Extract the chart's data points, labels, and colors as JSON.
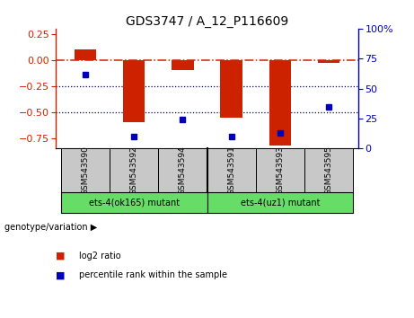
{
  "title": "GDS3747 / A_12_P116609",
  "samples": [
    "GSM543590",
    "GSM543592",
    "GSM543594",
    "GSM543591",
    "GSM543593",
    "GSM543595"
  ],
  "log2_ratio": [
    0.1,
    -0.6,
    -0.1,
    -0.55,
    -0.82,
    -0.03
  ],
  "percentile_rank": [
    62,
    10,
    24,
    10,
    13,
    35
  ],
  "group1_label": "ets-4(ok165) mutant",
  "group2_label": "ets-4(uz1) mutant",
  "ylim_left": [
    -0.85,
    0.3
  ],
  "ylim_right": [
    0,
    100
  ],
  "yticks_left": [
    0.25,
    0.0,
    -0.25,
    -0.5,
    -0.75
  ],
  "yticks_right": [
    100,
    75,
    50,
    25,
    0
  ],
  "bar_color": "#cc2200",
  "dot_color": "#0000bb",
  "sample_bg": "#c8c8c8",
  "group_bg": "#66dd66",
  "legend_bar_label": "log2 ratio",
  "legend_dot_label": "percentile rank within the sample",
  "bar_width": 0.45,
  "hline_zero_color": "#cc2200",
  "hline_dotted_color": "#000055"
}
